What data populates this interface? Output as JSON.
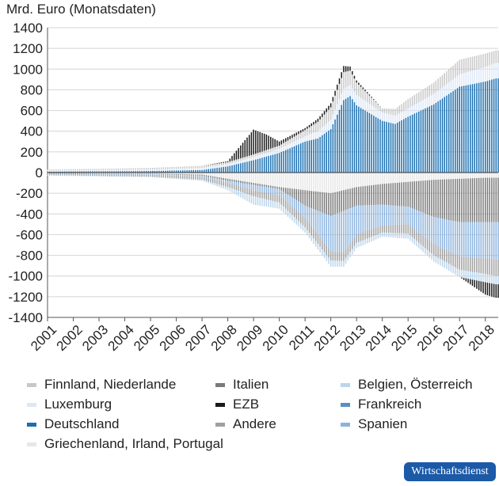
{
  "unit_label": "Mrd. Euro (Monatsdaten)",
  "badge": "Wirtschaftsdienst",
  "chart_data": {
    "type": "bar",
    "stacked": true,
    "title": "",
    "ylabel": "Mrd. Euro (Monatsdaten)",
    "ylim": [
      -1400,
      1400
    ],
    "y_ticks": [
      "1400",
      "1200",
      "1000",
      "800",
      "600",
      "400",
      "200",
      "0",
      "-200",
      "-400",
      "-600",
      "-800",
      "-1000",
      "-1200",
      "-1400"
    ],
    "x_ticks": [
      "2001",
      "2002",
      "2003",
      "2004",
      "2005",
      "2006",
      "2007",
      "2008",
      "2009",
      "2010",
      "2011",
      "2012",
      "2013",
      "2014",
      "2015",
      "2016",
      "2017",
      "2018"
    ],
    "x_range": [
      2001.0,
      2018.5
    ],
    "grid": true,
    "legend_position": "bottom",
    "colors": {
      "Finnland, Niederlande": "#c8c8c8",
      "Italien": "#7a7a7a",
      "Belgien, Österreich": "#bcd6ec",
      "Luxemburg": "#dde8f6",
      "EZB": "#1a1a1a",
      "Frankreich": "#5a8fc3",
      "Deutschland": "#1b6fb0",
      "Andere": "#a0a0a0",
      "Spanien": "#8cb3de",
      "Griechenland, Irland, Portugal": "#e6e6e6"
    },
    "legend": [
      "Finnland, Niederlande",
      "Italien",
      "Belgien, Österreich",
      "Luxemburg",
      "EZB",
      "Frankreich",
      "Deutschland",
      "Andere",
      "Spanien",
      "Griechenland, Irland, Portugal"
    ],
    "positive_series": [
      {
        "name": "Deutschland",
        "points": [
          [
            2001,
            10
          ],
          [
            2003,
            12
          ],
          [
            2005,
            15
          ],
          [
            2007,
            25
          ],
          [
            2008,
            60
          ],
          [
            2009,
            120
          ],
          [
            2010,
            190
          ],
          [
            2011,
            300
          ],
          [
            2011.5,
            330
          ],
          [
            2012,
            420
          ],
          [
            2012.5,
            700
          ],
          [
            2012.75,
            740
          ],
          [
            2013,
            650
          ],
          [
            2014,
            500
          ],
          [
            2014.5,
            470
          ],
          [
            2015,
            540
          ],
          [
            2016,
            660
          ],
          [
            2017,
            830
          ],
          [
            2018,
            880
          ],
          [
            2018.4,
            910
          ]
        ]
      },
      {
        "name": "Luxemburg",
        "points": [
          [
            2001,
            10
          ],
          [
            2003,
            12
          ],
          [
            2005,
            15
          ],
          [
            2007,
            20
          ],
          [
            2008,
            20
          ],
          [
            2009,
            30
          ],
          [
            2010,
            40
          ],
          [
            2011,
            50
          ],
          [
            2012,
            90
          ],
          [
            2012.5,
            110
          ],
          [
            2013,
            100
          ],
          [
            2014,
            80
          ],
          [
            2015,
            80
          ],
          [
            2016,
            100
          ],
          [
            2017,
            120
          ],
          [
            2018,
            140
          ],
          [
            2018.4,
            150
          ]
        ]
      },
      {
        "name": "Finnland, Niederlande",
        "points": [
          [
            2001,
            10
          ],
          [
            2003,
            12
          ],
          [
            2005,
            15
          ],
          [
            2007,
            20
          ],
          [
            2008,
            20
          ],
          [
            2009,
            25
          ],
          [
            2010,
            30
          ],
          [
            2011,
            60
          ],
          [
            2012,
            120
          ],
          [
            2012.5,
            160
          ],
          [
            2013,
            120
          ],
          [
            2014,
            40
          ],
          [
            2015,
            90
          ],
          [
            2016,
            110
          ],
          [
            2017,
            140
          ],
          [
            2018,
            130
          ],
          [
            2018.4,
            120
          ]
        ]
      },
      {
        "name": "EZB",
        "points": [
          [
            2001,
            0
          ],
          [
            2007,
            0
          ],
          [
            2008,
            10
          ],
          [
            2009,
            240
          ],
          [
            2009.5,
            150
          ],
          [
            2010,
            40
          ],
          [
            2011,
            20
          ],
          [
            2012,
            40
          ],
          [
            2012.5,
            60
          ],
          [
            2013,
            20
          ],
          [
            2014,
            0
          ],
          [
            2018.4,
            0
          ]
        ]
      }
    ],
    "negative_series": [
      {
        "name": "Griechenland, Irland, Portugal",
        "points": [
          [
            2001,
            -5
          ],
          [
            2003,
            -8
          ],
          [
            2005,
            -10
          ],
          [
            2007,
            -20
          ],
          [
            2008,
            -60
          ],
          [
            2009,
            -100
          ],
          [
            2010,
            -140
          ],
          [
            2011,
            -170
          ],
          [
            2012,
            -200
          ],
          [
            2012.5,
            -170
          ],
          [
            2013,
            -140
          ],
          [
            2014,
            -110
          ],
          [
            2015,
            -90
          ],
          [
            2016,
            -70
          ],
          [
            2017,
            -60
          ],
          [
            2018,
            -50
          ],
          [
            2018.4,
            -50
          ]
        ]
      },
      {
        "name": "Italien",
        "points": [
          [
            2001,
            -5
          ],
          [
            2005,
            -5
          ],
          [
            2007,
            -10
          ],
          [
            2008,
            -20
          ],
          [
            2009,
            -20
          ],
          [
            2010,
            -20
          ],
          [
            2011,
            -150
          ],
          [
            2012,
            -220
          ],
          [
            2012.5,
            -200
          ],
          [
            2013,
            -180
          ],
          [
            2014,
            -200
          ],
          [
            2015,
            -240
          ],
          [
            2016,
            -360
          ],
          [
            2017,
            -420
          ],
          [
            2018,
            -430
          ],
          [
            2018.4,
            -430
          ]
        ]
      },
      {
        "name": "Spanien",
        "points": [
          [
            2001,
            -5
          ],
          [
            2005,
            -5
          ],
          [
            2007,
            -10
          ],
          [
            2008,
            -20
          ],
          [
            2009,
            -50
          ],
          [
            2010,
            -60
          ],
          [
            2011,
            -120
          ],
          [
            2012,
            -340
          ],
          [
            2012.5,
            -400
          ],
          [
            2013,
            -280
          ],
          [
            2014,
            -200
          ],
          [
            2015,
            -170
          ],
          [
            2016,
            -260
          ],
          [
            2017,
            -330
          ],
          [
            2018,
            -350
          ],
          [
            2018.4,
            -360
          ]
        ]
      },
      {
        "name": "Andere",
        "points": [
          [
            2001,
            -10
          ],
          [
            2005,
            -20
          ],
          [
            2007,
            -30
          ],
          [
            2008,
            -40
          ],
          [
            2009,
            -60
          ],
          [
            2010,
            -70
          ],
          [
            2011,
            -90
          ],
          [
            2012,
            -90
          ],
          [
            2013,
            -80
          ],
          [
            2014,
            -70
          ],
          [
            2015,
            -90
          ],
          [
            2016,
            -110
          ],
          [
            2017,
            -130
          ],
          [
            2018,
            -150
          ],
          [
            2018.4,
            -160
          ]
        ]
      },
      {
        "name": "Belgien, Österreich",
        "points": [
          [
            2001,
            -5
          ],
          [
            2005,
            -5
          ],
          [
            2007,
            -10
          ],
          [
            2008,
            -30
          ],
          [
            2009,
            -80
          ],
          [
            2010,
            -60
          ],
          [
            2011,
            -50
          ],
          [
            2012,
            -60
          ],
          [
            2013,
            -50
          ],
          [
            2014,
            -40
          ],
          [
            2015,
            -50
          ],
          [
            2016,
            -60
          ],
          [
            2017,
            -70
          ],
          [
            2018,
            -80
          ],
          [
            2018.4,
            -80
          ]
        ]
      },
      {
        "name": "EZB",
        "points": [
          [
            2001,
            0
          ],
          [
            2017,
            0
          ],
          [
            2018,
            -120
          ],
          [
            2018.4,
            -130
          ]
        ]
      }
    ]
  }
}
